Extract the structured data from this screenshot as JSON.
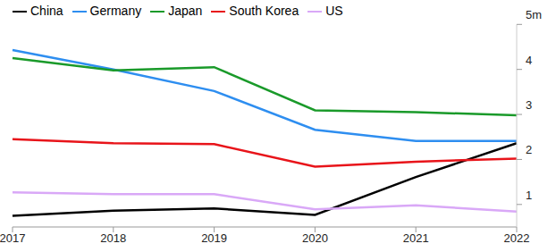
{
  "chart_data": {
    "type": "line",
    "categories": [
      "2017",
      "2018",
      "2019",
      "2020",
      "2021",
      "2022"
    ],
    "series": [
      {
        "name": "China",
        "color": "#000000",
        "values": [
          0.75,
          0.86,
          0.91,
          0.77,
          1.61,
          2.36
        ]
      },
      {
        "name": "Germany",
        "color": "#2e8ef0",
        "values": [
          4.43,
          4.0,
          3.52,
          2.66,
          2.41,
          2.41
        ]
      },
      {
        "name": "South Korea",
        "color": "#e8141a",
        "values": [
          2.45,
          2.36,
          2.34,
          1.84,
          1.95,
          2.02
        ]
      },
      {
        "name": "Japan",
        "color": "#1a9a2a",
        "values": [
          4.25,
          3.98,
          4.05,
          3.09,
          3.05,
          2.98
        ]
      },
      {
        "name": "US",
        "color": "#d9a8f7",
        "values": [
          1.27,
          1.23,
          1.23,
          0.89,
          0.98,
          0.84
        ]
      }
    ],
    "ylim": [
      0.5,
      5
    ],
    "yticks": [
      1,
      2,
      3,
      4,
      {
        "value": 5,
        "label": "5m"
      }
    ],
    "grid": false,
    "legend": "top-left"
  }
}
